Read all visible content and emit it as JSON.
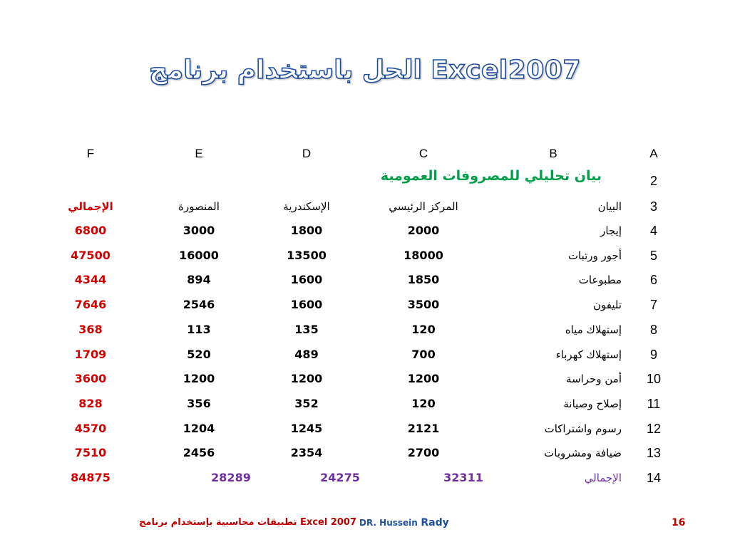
{
  "title": "الحل باستخدام برنامج Excel2007",
  "columns": [
    "F",
    "E",
    "D",
    "C",
    "B",
    "A"
  ],
  "subtitle": "بيان تحليلي للمصروفات العمومية",
  "subtitle_row": "2",
  "header": {
    "row": "3",
    "label": "البيان",
    "c": "المركز الرئيسي",
    "d": "الإسكندرية",
    "e": "المنصورة",
    "f": "الإجمالي"
  },
  "rows": [
    {
      "n": "4",
      "label": "إيجار",
      "c": "2000",
      "d": "1800",
      "e": "3000",
      "f": "6800"
    },
    {
      "n": "5",
      "label": "أجور ورتبات",
      "c": "18000",
      "d": "13500",
      "e": "16000",
      "f": "47500"
    },
    {
      "n": "6",
      "label": "مطبوعات",
      "c": "1850",
      "d": "1600",
      "e": "894",
      "f": "4344"
    },
    {
      "n": "7",
      "label": "تليفون",
      "c": "3500",
      "d": "1600",
      "e": "2546",
      "f": "7646"
    },
    {
      "n": "8",
      "label": "إستهلاك مياه",
      "c": "120",
      "d": "135",
      "e": "113",
      "f": "368"
    },
    {
      "n": "9",
      "label": "إستهلاك كهرباء",
      "c": "700",
      "d": "489",
      "e": "520",
      "f": "1709"
    },
    {
      "n": "10",
      "label": "أمن وحراسة",
      "c": "1200",
      "d": "1200",
      "e": "1200",
      "f": "3600"
    },
    {
      "n": "11",
      "label": "إصلاح وصيانة",
      "c": "120",
      "d": "352",
      "e": "356",
      "f": "828"
    },
    {
      "n": "12",
      "label": "رسوم واشتراكات",
      "c": "2121",
      "d": "1245",
      "e": "1204",
      "f": "4570"
    },
    {
      "n": "13",
      "label": "ضيافة ومشروبات",
      "c": "2700",
      "d": "2354",
      "e": "2456",
      "f": "7510"
    }
  ],
  "total": {
    "n": "14",
    "label": "الإجمالي",
    "c": "32311",
    "d": "24275",
    "e": "28289",
    "f": "84875"
  },
  "footer": {
    "left": "Excel 2007 تطبيقات محاسبية بإستخدام برنامج",
    "author_first": "DR. Hussein",
    "author_last": "Rady",
    "page": "16"
  },
  "colors": {
    "title_outline": "#1f4e9c",
    "subtitle": "#00a04a",
    "totals": "#d20000",
    "grand": "#7030a0"
  }
}
